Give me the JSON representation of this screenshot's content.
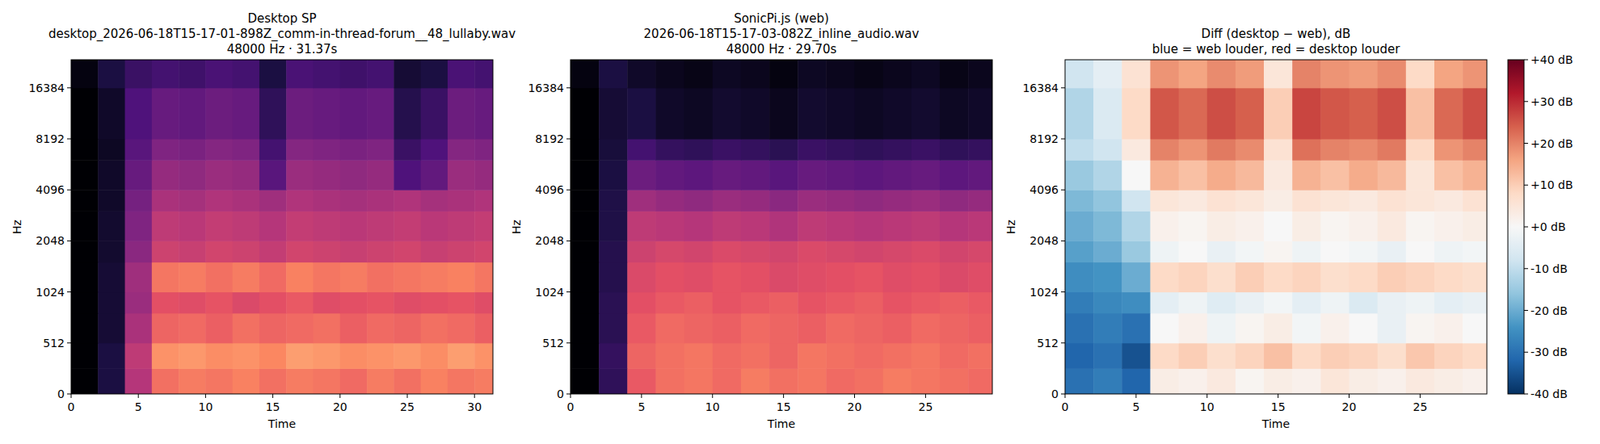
{
  "chart_data": [
    {
      "type": "heatmap",
      "title": "Desktop SP\ndesktop_2026-06-18T15-17-01-898Z_comm-in-thread-forum__48_lullaby.wav\n48000 Hz · 31.37s",
      "xlabel": "Time",
      "ylabel": "Hz",
      "color": "magma",
      "log": "y",
      "xlim": [
        0,
        31.37
      ],
      "xticks": [
        0,
        5,
        10,
        15,
        20,
        25,
        30
      ],
      "ylim": [
        0,
        24000
      ],
      "yticks": [
        0,
        512,
        1024,
        2048,
        4096,
        8192,
        16384
      ],
      "zlim": [
        -80,
        0
      ],
      "x_bins": [
        0,
        2,
        4,
        6,
        8,
        10,
        12,
        14,
        16,
        18,
        20,
        22,
        24,
        26,
        28,
        30,
        31.37
      ],
      "y_bins": [
        0,
        256,
        512,
        768,
        1024,
        1536,
        2048,
        3072,
        4096,
        6144,
        8192,
        16384,
        24000
      ],
      "cells": [
        [
          -80,
          -70,
          -40,
          -24,
          -22,
          -23,
          -21,
          -24,
          -22,
          -23,
          -25,
          -22,
          -24,
          -21,
          -23,
          -22
        ],
        [
          -80,
          -70,
          -38,
          -18,
          -17,
          -19,
          -18,
          -20,
          -16,
          -17,
          -19,
          -18,
          -17,
          -19,
          -16,
          -18
        ],
        [
          -80,
          -72,
          -42,
          -26,
          -25,
          -27,
          -24,
          -26,
          -25,
          -24,
          -27,
          -25,
          -26,
          -24,
          -25,
          -27
        ],
        [
          -80,
          -72,
          -45,
          -30,
          -31,
          -29,
          -32,
          -30,
          -28,
          -31,
          -30,
          -29,
          -31,
          -30,
          -29,
          -31
        ],
        [
          -80,
          -72,
          -44,
          -23,
          -22,
          -24,
          -22,
          -25,
          -21,
          -23,
          -22,
          -24,
          -23,
          -22,
          -21,
          -23
        ],
        [
          -80,
          -73,
          -48,
          -35,
          -36,
          -34,
          -35,
          -37,
          -34,
          -35,
          -36,
          -35,
          -34,
          -36,
          -35,
          -34
        ],
        [
          -80,
          -73,
          -50,
          -38,
          -39,
          -37,
          -38,
          -40,
          -37,
          -38,
          -39,
          -38,
          -37,
          -39,
          -38,
          -37
        ],
        [
          -80,
          -74,
          -52,
          -42,
          -43,
          -41,
          -42,
          -44,
          -41,
          -42,
          -43,
          -42,
          -41,
          -43,
          -42,
          -41
        ],
        [
          -80,
          -74,
          -55,
          -46,
          -47,
          -45,
          -46,
          -58,
          -45,
          -46,
          -47,
          -46,
          -60,
          -56,
          -45,
          -46
        ],
        [
          -80,
          -75,
          -58,
          -50,
          -51,
          -49,
          -50,
          -62,
          -49,
          -50,
          -51,
          -50,
          -64,
          -60,
          -49,
          -50
        ],
        [
          -80,
          -74,
          -60,
          -55,
          -56,
          -54,
          -55,
          -66,
          -54,
          -55,
          -56,
          -55,
          -68,
          -64,
          -54,
          -55
        ],
        [
          -78,
          -70,
          -64,
          -62,
          -63,
          -61,
          -62,
          -70,
          -61,
          -62,
          -63,
          -62,
          -72,
          -70,
          -61,
          -62
        ]
      ]
    },
    {
      "type": "heatmap",
      "title": "SonicPi.js (web)\n2026-06-18T15-17-03-082Z_inline_audio.wav\n48000 Hz · 29.70s",
      "xlabel": "Time",
      "ylabel": "Hz",
      "color": "magma",
      "log": "y",
      "xlim": [
        0,
        29.7
      ],
      "xticks": [
        0,
        5,
        10,
        15,
        20,
        25
      ],
      "ylim": [
        0,
        24000
      ],
      "yticks": [
        0,
        512,
        1024,
        2048,
        4096,
        8192,
        16384
      ],
      "zlim": [
        -80,
        0
      ],
      "x_bins": [
        0,
        2,
        4,
        6,
        8,
        10,
        12,
        14,
        16,
        18,
        20,
        22,
        24,
        26,
        28,
        29.7
      ],
      "y_bins": [
        0,
        256,
        512,
        768,
        1024,
        1536,
        2048,
        3072,
        4096,
        6144,
        8192,
        16384,
        24000
      ],
      "cells": [
        [
          -80,
          -66,
          -28,
          -24,
          -23,
          -25,
          -22,
          -24,
          -23,
          -25,
          -24,
          -22,
          -23,
          -24,
          -25
        ],
        [
          -80,
          -65,
          -26,
          -24,
          -23,
          -25,
          -24,
          -26,
          -23,
          -24,
          -25,
          -24,
          -23,
          -25,
          -24
        ],
        [
          -80,
          -67,
          -28,
          -25,
          -26,
          -27,
          -25,
          -26,
          -27,
          -25,
          -26,
          -27,
          -25,
          -26,
          -27
        ],
        [
          -80,
          -67,
          -30,
          -28,
          -27,
          -29,
          -28,
          -27,
          -29,
          -28,
          -27,
          -29,
          -28,
          -27,
          -28
        ],
        [
          -80,
          -68,
          -32,
          -30,
          -31,
          -29,
          -30,
          -32,
          -31,
          -30,
          -29,
          -31,
          -30,
          -32,
          -31
        ],
        [
          -80,
          -68,
          -35,
          -33,
          -34,
          -32,
          -33,
          -34,
          -32,
          -33,
          -34,
          -33,
          -32,
          -34,
          -33
        ],
        [
          -80,
          -69,
          -38,
          -39,
          -40,
          -38,
          -39,
          -41,
          -38,
          -39,
          -40,
          -39,
          -38,
          -40,
          -39
        ],
        [
          -80,
          -69,
          -44,
          -46,
          -47,
          -45,
          -46,
          -48,
          -45,
          -46,
          -47,
          -46,
          -45,
          -47,
          -46
        ],
        [
          -80,
          -70,
          -54,
          -56,
          -57,
          -55,
          -56,
          -58,
          -55,
          -56,
          -57,
          -56,
          -55,
          -57,
          -56
        ],
        [
          -80,
          -71,
          -62,
          -65,
          -66,
          -64,
          -65,
          -67,
          -64,
          -65,
          -66,
          -65,
          -64,
          -66,
          -65
        ],
        [
          -80,
          -72,
          -70,
          -74,
          -75,
          -73,
          -74,
          -76,
          -73,
          -74,
          -75,
          -74,
          -73,
          -75,
          -74
        ],
        [
          -78,
          -70,
          -74,
          -76,
          -77,
          -75,
          -76,
          -78,
          -75,
          -76,
          -77,
          -76,
          -75,
          -77,
          -76
        ]
      ]
    },
    {
      "type": "heatmap",
      "title": "Diff (desktop − web), dB\nblue = web louder, red = desktop louder",
      "xlabel": "Time",
      "ylabel": "Hz",
      "color": "RdBu_r",
      "log": "y",
      "xlim": [
        0,
        29.7
      ],
      "xticks": [
        0,
        5,
        10,
        15,
        20,
        25
      ],
      "ylim": [
        0,
        24000
      ],
      "yticks": [
        0,
        512,
        1024,
        2048,
        4096,
        8192,
        16384
      ],
      "zlim": [
        -40,
        40
      ],
      "zticks": [
        {
          "value": -40,
          "label": "-40 dB"
        },
        {
          "value": -30,
          "label": "-30 dB"
        },
        {
          "value": -20,
          "label": "-20 dB"
        },
        {
          "value": -10,
          "label": "-10 dB"
        },
        {
          "value": 0,
          "label": "+0 dB"
        },
        {
          "value": 10,
          "label": "+10 dB"
        },
        {
          "value": 20,
          "label": "+20 dB"
        },
        {
          "value": 30,
          "label": "+30 dB"
        },
        {
          "value": 40,
          "label": "+40 dB"
        }
      ],
      "x_bins": [
        0,
        2,
        4,
        6,
        8,
        10,
        12,
        14,
        16,
        18,
        20,
        22,
        24,
        26,
        28,
        29.7
      ],
      "y_bins": [
        0,
        256,
        512,
        768,
        1024,
        1536,
        2048,
        3072,
        4096,
        6144,
        8192,
        16384,
        24000
      ],
      "cells": [
        [
          -30,
          -28,
          -32,
          3,
          2,
          4,
          1,
          3,
          2,
          5,
          3,
          2,
          4,
          3,
          2
        ],
        [
          -32,
          -30,
          -35,
          8,
          10,
          7,
          9,
          12,
          8,
          10,
          9,
          7,
          11,
          9,
          8
        ],
        [
          -30,
          -28,
          -30,
          0,
          2,
          -2,
          1,
          3,
          -1,
          2,
          0,
          -3,
          1,
          2,
          0
        ],
        [
          -28,
          -26,
          -25,
          -4,
          -2,
          -5,
          -3,
          -1,
          -4,
          -2,
          -6,
          -3,
          -2,
          -4,
          -3
        ],
        [
          -25,
          -24,
          -20,
          8,
          9,
          7,
          10,
          8,
          9,
          7,
          8,
          10,
          9,
          8,
          7
        ],
        [
          -22,
          -20,
          -15,
          -2,
          0,
          -3,
          -1,
          1,
          -2,
          0,
          -1,
          -3,
          0,
          -2,
          -1
        ],
        [
          -20,
          -18,
          -12,
          2,
          1,
          3,
          2,
          0,
          3,
          1,
          2,
          4,
          1,
          2,
          3
        ],
        [
          -18,
          -16,
          -8,
          5,
          4,
          6,
          5,
          3,
          6,
          5,
          4,
          6,
          5,
          4,
          6
        ],
        [
          -15,
          -12,
          0,
          14,
          12,
          15,
          13,
          4,
          14,
          12,
          15,
          13,
          5,
          12,
          14
        ],
        [
          -10,
          -8,
          4,
          20,
          18,
          21,
          19,
          6,
          22,
          20,
          19,
          21,
          8,
          18,
          20
        ],
        [
          -12,
          -6,
          8,
          25,
          23,
          26,
          24,
          10,
          27,
          25,
          24,
          26,
          12,
          23,
          26
        ],
        [
          -8,
          -4,
          6,
          18,
          16,
          19,
          17,
          5,
          20,
          18,
          17,
          19,
          8,
          16,
          18
        ]
      ]
    }
  ]
}
